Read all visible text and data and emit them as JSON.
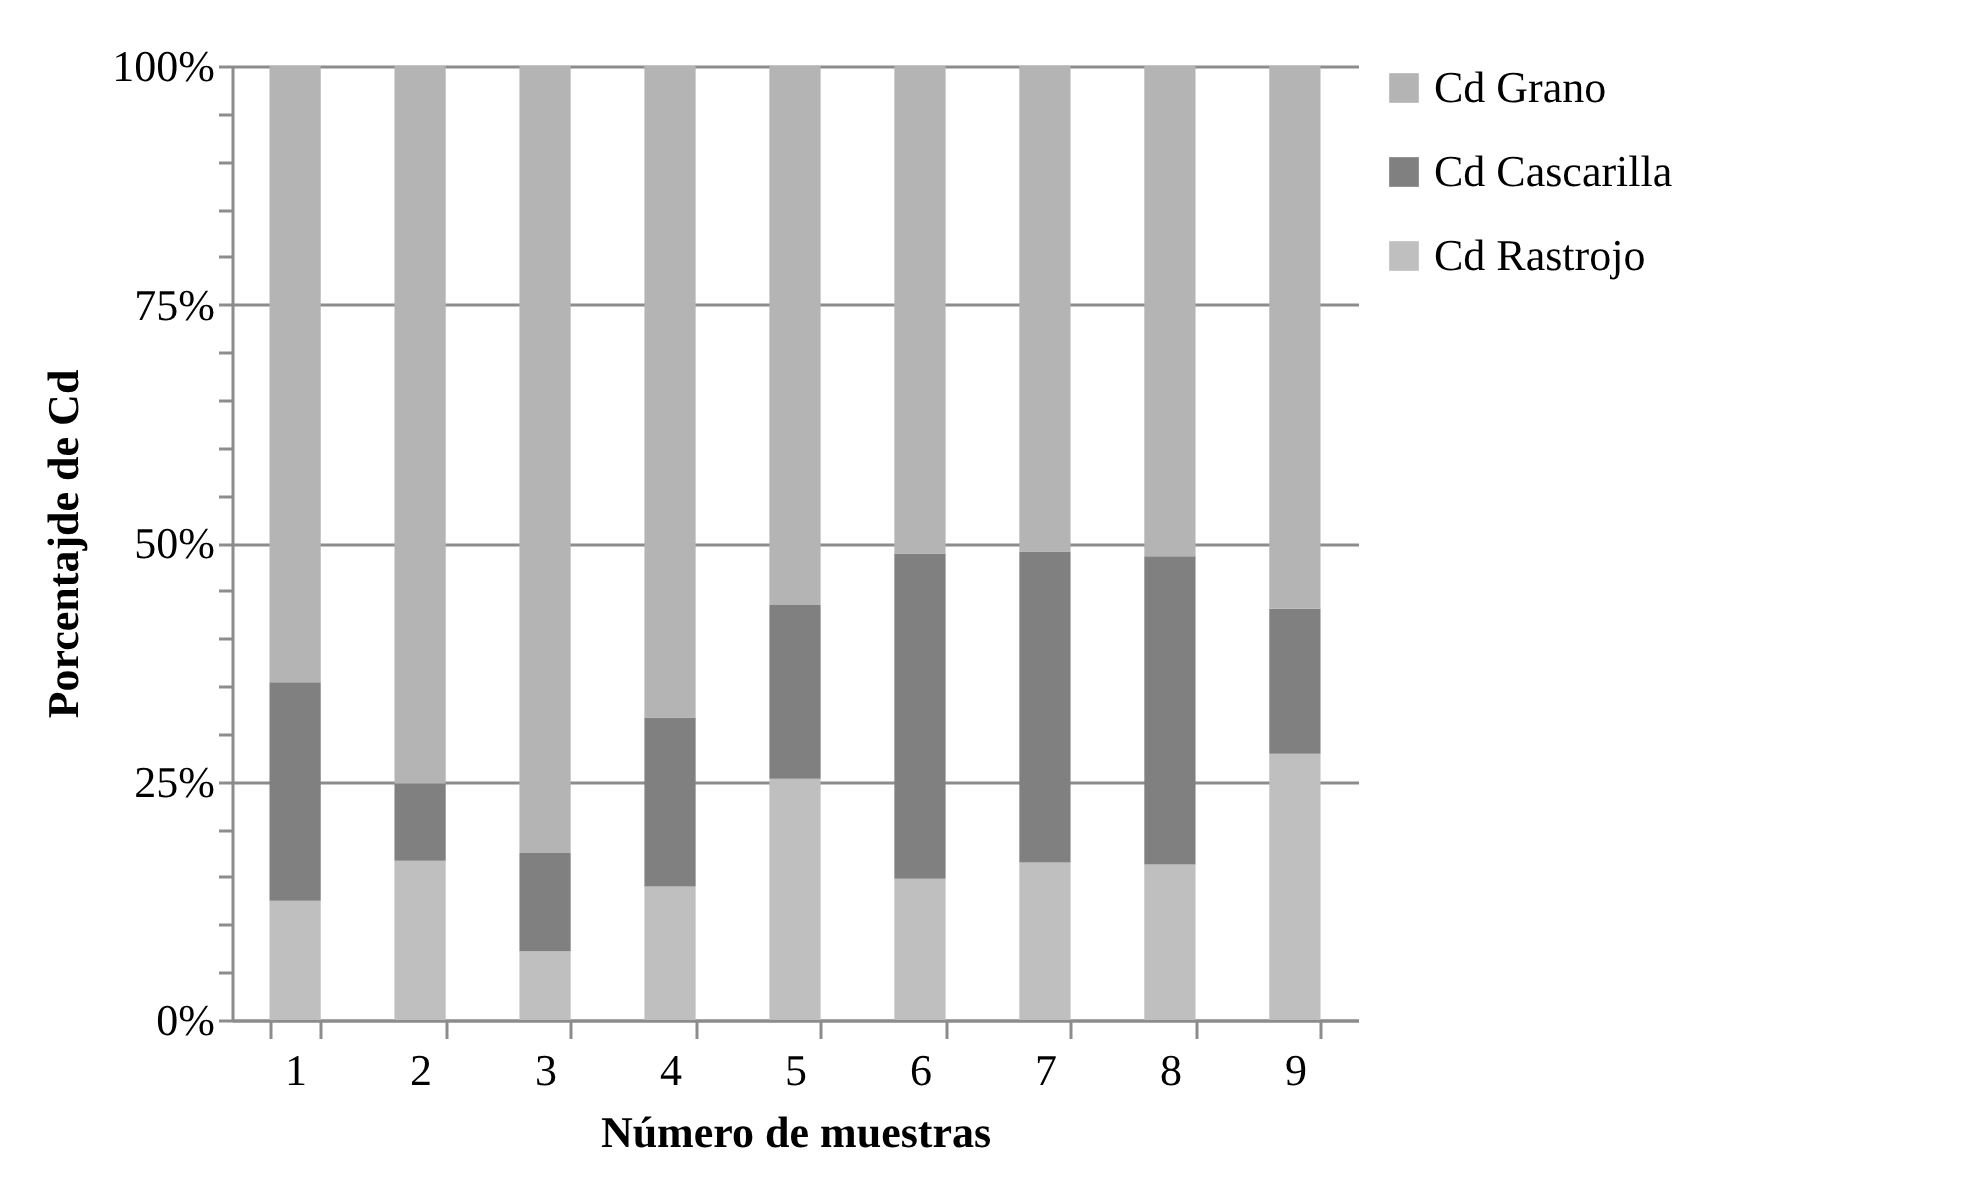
{
  "chart_data": {
    "type": "bar",
    "stacked": true,
    "xlabel": "Número de muestras",
    "ylabel": "Porcentajde de Cd",
    "categories": [
      "1",
      "2",
      "3",
      "4",
      "5",
      "6",
      "7",
      "8",
      "9"
    ],
    "series": [
      {
        "name": "Cd Rastrojo",
        "color": "#bfbfbf",
        "values": [
          12.5,
          16.7,
          7.2,
          14.0,
          25.3,
          14.8,
          16.5,
          16.3,
          27.9
        ]
      },
      {
        "name": "Cd Cascarilla",
        "color": "#808080",
        "values": [
          22.9,
          8.1,
          10.3,
          17.7,
          18.2,
          34.1,
          32.6,
          32.3,
          15.2
        ]
      },
      {
        "name": "Cd Grano",
        "color": "#b4b4b4",
        "values": [
          64.6,
          75.2,
          82.5,
          68.3,
          56.5,
          51.1,
          50.9,
          51.4,
          56.9
        ]
      }
    ],
    "ylim": [
      0,
      100
    ],
    "yticks": [
      {
        "value": 0,
        "label": "0%"
      },
      {
        "value": 5,
        "label": null
      },
      {
        "value": 10,
        "label": null
      },
      {
        "value": 15,
        "label": null
      },
      {
        "value": 20,
        "label": null
      },
      {
        "value": 25,
        "label": "25%"
      },
      {
        "value": 30,
        "label": null
      },
      {
        "value": 35,
        "label": null
      },
      {
        "value": 40,
        "label": null
      },
      {
        "value": 45,
        "label": null
      },
      {
        "value": 50,
        "label": "50%"
      },
      {
        "value": 55,
        "label": null
      },
      {
        "value": 60,
        "label": null
      },
      {
        "value": 65,
        "label": null
      },
      {
        "value": 70,
        "label": null
      },
      {
        "value": 75,
        "label": "75%"
      },
      {
        "value": 80,
        "label": null
      },
      {
        "value": 85,
        "label": null
      },
      {
        "value": 90,
        "label": null
      },
      {
        "value": 95,
        "label": null
      },
      {
        "value": 100,
        "label": "100%"
      }
    ],
    "grid": "y",
    "legend": "right"
  }
}
